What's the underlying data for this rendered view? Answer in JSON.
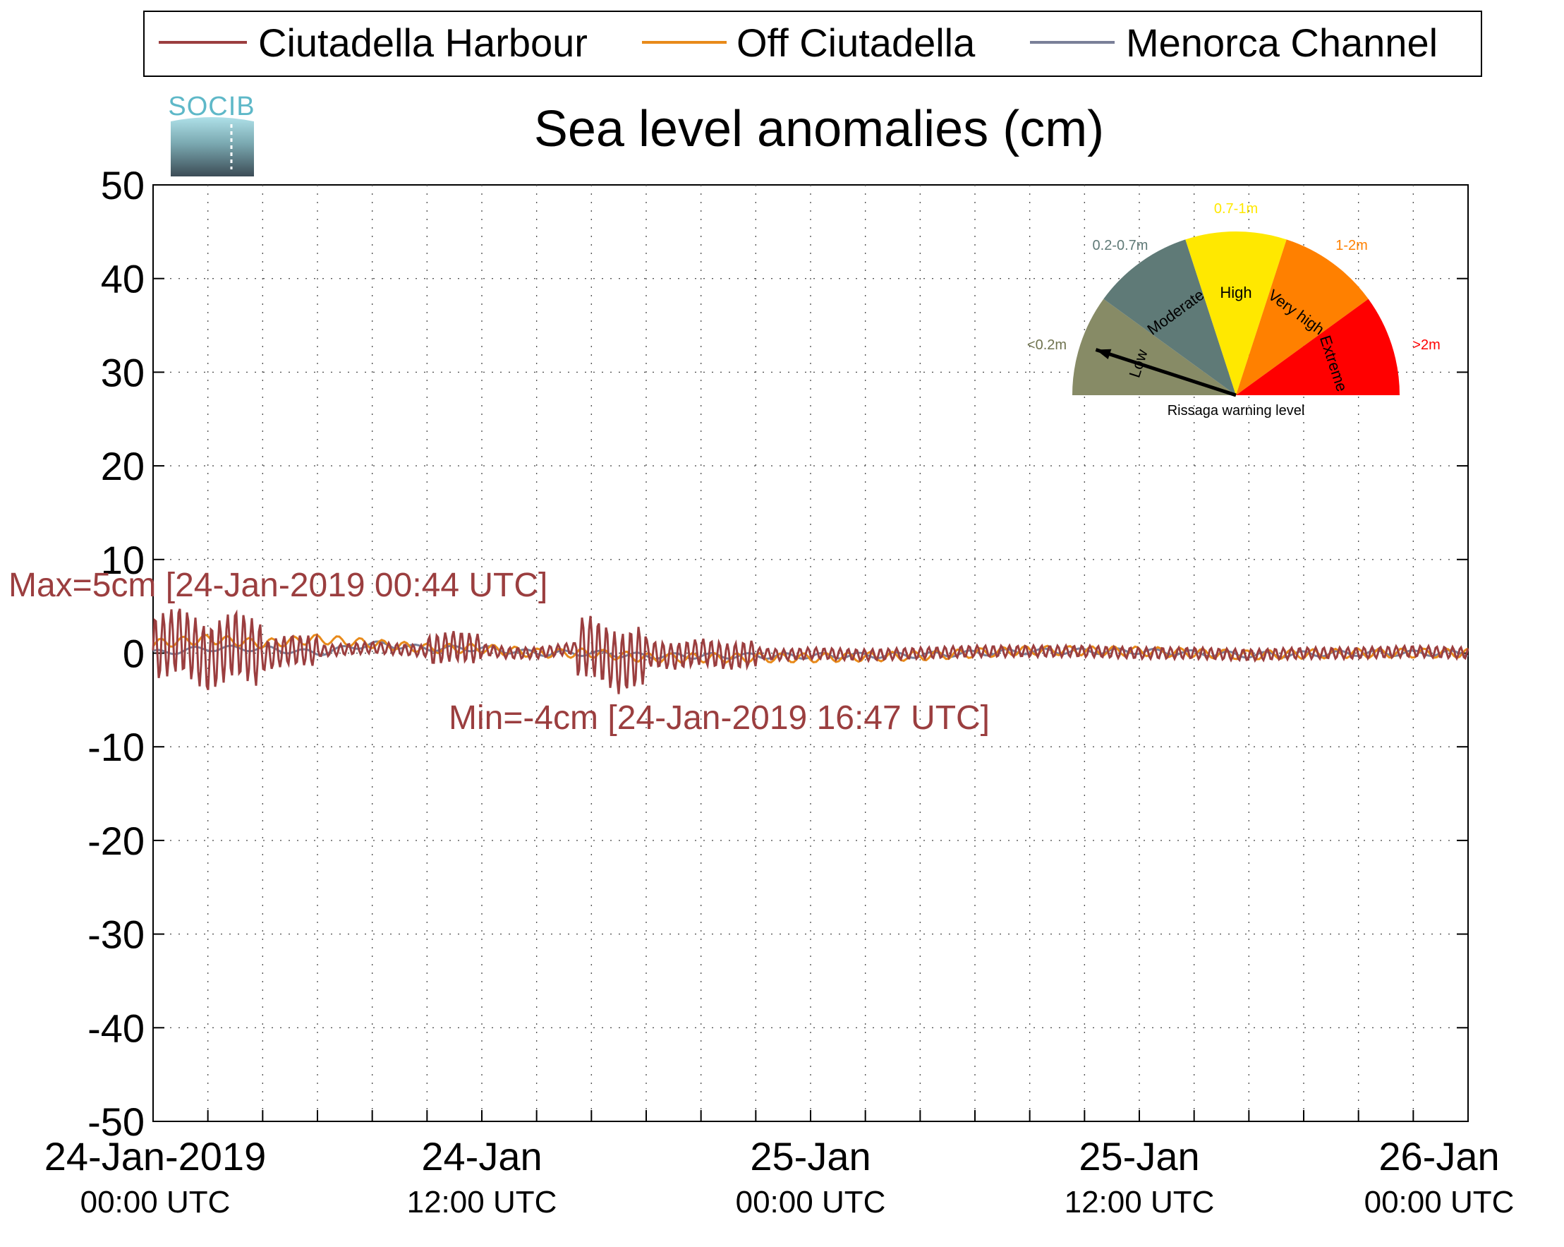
{
  "chart_data": {
    "type": "line",
    "title": "Sea level anomalies (cm)",
    "ylim": [
      -50,
      50
    ],
    "yticks": [
      50,
      40,
      30,
      20,
      10,
      0,
      -10,
      -20,
      -30,
      -40,
      -50
    ],
    "xlim": [
      "2019-01-24 00:00",
      "2019-01-26 00:00"
    ],
    "grid": true,
    "legend_position": "top",
    "xtick_labels": [
      {
        "x": "2019-01-24 00:00",
        "date": "24-Jan-2019",
        "time": "00:00 UTC"
      },
      {
        "x": "2019-01-24 12:00",
        "date": "24-Jan",
        "time": "12:00 UTC"
      },
      {
        "x": "2019-01-25 00:00",
        "date": "25-Jan",
        "time": "00:00 UTC"
      },
      {
        "x": "2019-01-25 12:00",
        "date": "25-Jan",
        "time": "12:00 UTC"
      },
      {
        "x": "2019-01-26 00:00",
        "date": "26-Jan",
        "time": "00:00 UTC"
      }
    ],
    "series": [
      {
        "name": "Ciutadella Harbour",
        "color": "#9b3e3f",
        "x": [
          "2019-01-24 00:00",
          "2019-01-24 01:00",
          "2019-01-24 02:00",
          "2019-01-24 03:00",
          "2019-01-24 04:00",
          "2019-01-24 05:00",
          "2019-01-24 06:00",
          "2019-01-24 07:00",
          "2019-01-24 08:00",
          "2019-01-24 09:00",
          "2019-01-24 10:00",
          "2019-01-24 11:00",
          "2019-01-24 12:00",
          "2019-01-24 13:00",
          "2019-01-24 14:00",
          "2019-01-24 15:00",
          "2019-01-24 16:00",
          "2019-01-24 17:00",
          "2019-01-24 18:00",
          "2019-01-24 19:00",
          "2019-01-24 20:00",
          "2019-01-24 21:00",
          "2019-01-24 22:00",
          "2019-01-24 23:00",
          "2019-01-25 00:00",
          "2019-01-25 02:00",
          "2019-01-25 04:00",
          "2019-01-25 06:00",
          "2019-01-25 08:00",
          "2019-01-25 10:00",
          "2019-01-25 12:00",
          "2019-01-25 14:00",
          "2019-01-25 16:00",
          "2019-01-25 18:00",
          "2019-01-25 20:00",
          "2019-01-25 22:00",
          "2019-01-26 00:00"
        ],
        "y": [
          1,
          4,
          -2,
          3,
          -1,
          1,
          0.5,
          1,
          1.5,
          1,
          0.5,
          2,
          1,
          0,
          0,
          1,
          2,
          -3,
          0,
          -1,
          0.5,
          -1,
          0,
          -0.5,
          0,
          -0.5,
          0,
          0.5,
          0.5,
          0.5,
          0,
          0,
          -0.5,
          0,
          0,
          0.5,
          0
        ]
      },
      {
        "name": "Off Ciutadella",
        "color": "#e88a1a",
        "x": [
          "2019-01-24 00:00",
          "2019-01-24 02:00",
          "2019-01-24 04:00",
          "2019-01-24 06:00",
          "2019-01-24 08:00",
          "2019-01-24 10:00",
          "2019-01-24 12:00",
          "2019-01-24 14:00",
          "2019-01-24 16:00",
          "2019-01-24 18:00",
          "2019-01-24 20:00",
          "2019-01-24 22:00",
          "2019-01-25 00:00",
          "2019-01-25 04:00",
          "2019-01-25 08:00",
          "2019-01-25 12:00",
          "2019-01-25 16:00",
          "2019-01-25 20:00",
          "2019-01-26 00:00"
        ],
        "y": [
          1,
          1.5,
          1,
          1.5,
          1,
          0.5,
          0.5,
          0,
          0,
          -0.5,
          -0.5,
          -0.5,
          -0.5,
          -0.3,
          0.3,
          0.2,
          -0.2,
          0,
          0
        ]
      },
      {
        "name": "Menorca Channel",
        "color": "#7a7f98",
        "x": [
          "2019-01-24 00:00",
          "2019-01-24 02:00",
          "2019-01-24 04:00",
          "2019-01-24 06:00",
          "2019-01-24 08:00",
          "2019-01-24 10:00",
          "2019-01-24 12:00",
          "2019-01-24 14:00",
          "2019-01-24 16:00",
          "2019-01-24 18:00",
          "2019-01-24 20:00",
          "2019-01-24 22:00",
          "2019-01-25 00:00",
          "2019-01-25 04:00",
          "2019-01-25 08:00",
          "2019-01-25 12:00",
          "2019-01-25 16:00",
          "2019-01-25 20:00",
          "2019-01-26 00:00"
        ],
        "y": [
          0,
          0.5,
          0.5,
          0,
          1,
          0.5,
          0.5,
          0,
          0,
          -0.3,
          -0.3,
          -0.3,
          -0.3,
          -0.2,
          0.2,
          0.2,
          -0.2,
          0,
          0
        ]
      }
    ],
    "annotations": [
      {
        "text": "Max=5cm [24-Jan-2019 00:44 UTC]",
        "color": "#9b3e3f",
        "position": "left, above zero line"
      },
      {
        "text": "Min=-4cm [24-Jan-2019 16:47 UTC]",
        "color": "#9b3e3f",
        "position": "middle, below zero line"
      }
    ],
    "gauge": {
      "caption": "Rissaga warning level",
      "needle_level": "Low",
      "segments": [
        {
          "name": "Low",
          "range": "<0.2m",
          "color": "#878b66"
        },
        {
          "name": "Moderate",
          "range": "0.2-0.7m",
          "color": "#5f7a77"
        },
        {
          "name": "High",
          "range": "0.7-1m",
          "color": "#ffe800"
        },
        {
          "name": "Very high",
          "range": "1-2m",
          "color": "#ff8000"
        },
        {
          "name": "Extreme",
          "range": ">2m",
          "color": "#ff0000"
        }
      ]
    }
  },
  "logo": {
    "text": "SOCIB",
    "color": "#5eb8c8"
  }
}
